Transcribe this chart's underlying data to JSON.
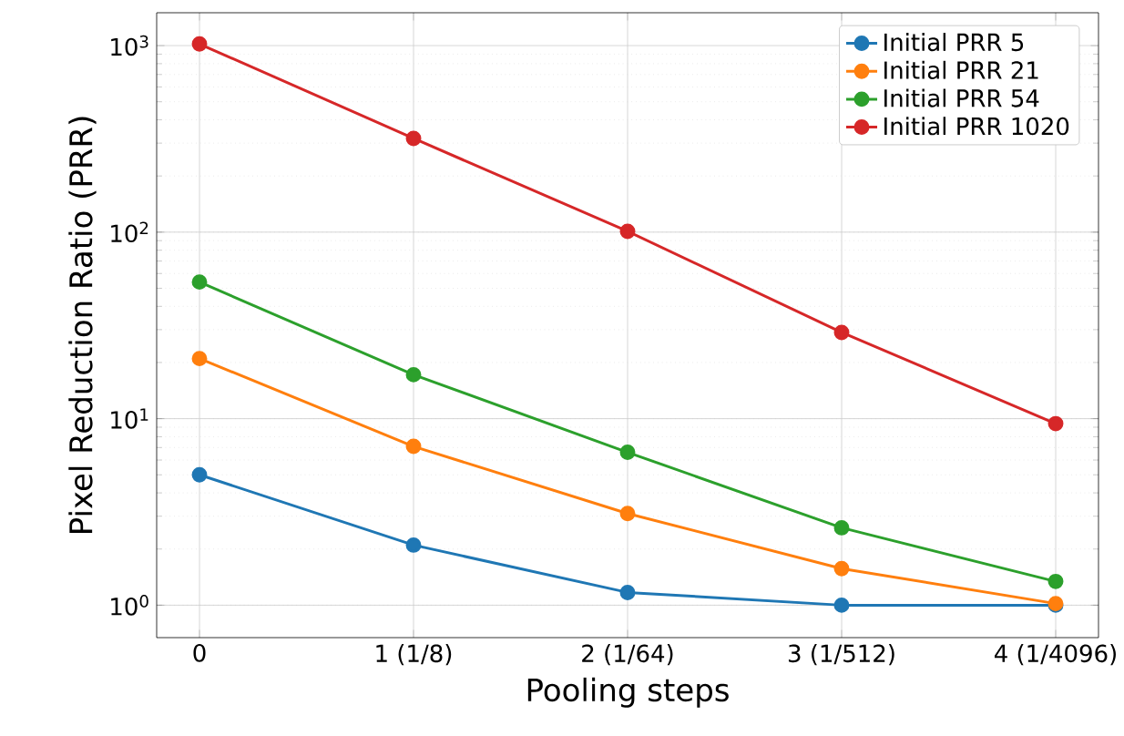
{
  "chart_data": {
    "type": "line",
    "xlabel": "Pooling steps",
    "ylabel": "Pixel Reduction Ratio (PRR)",
    "categories": [
      "0",
      "1 (1/8)",
      "2 (1/64)",
      "3 (1/512)",
      "4 (1/4096)"
    ],
    "series": [
      {
        "name": "Initial PRR 5",
        "color": "#1f77b4",
        "values": [
          5,
          2.1,
          1.17,
          1.0,
          1.0
        ]
      },
      {
        "name": "Initial PRR 21",
        "color": "#ff7f0e",
        "values": [
          21,
          7.1,
          3.1,
          1.57,
          1.02
        ]
      },
      {
        "name": "Initial PRR 54",
        "color": "#2ca02c",
        "values": [
          54,
          17.2,
          6.6,
          2.6,
          1.34
        ]
      },
      {
        "name": "Initial PRR 1020",
        "color": "#d62728",
        "values": [
          1020,
          318,
          101,
          29,
          9.4
        ]
      }
    ],
    "log": "y",
    "ylim": [
      0.67,
      1500
    ],
    "yticks": [
      {
        "value": 1,
        "label": "10$^{0}$"
      },
      {
        "value": 10,
        "label": "10$^{1}$"
      },
      {
        "value": 100,
        "label": "10$^{2}$"
      },
      {
        "value": 1000,
        "label": "10$^{3}$"
      }
    ],
    "grid": true,
    "legend": "top right",
    "marker": "circle",
    "line_style": "solid"
  }
}
